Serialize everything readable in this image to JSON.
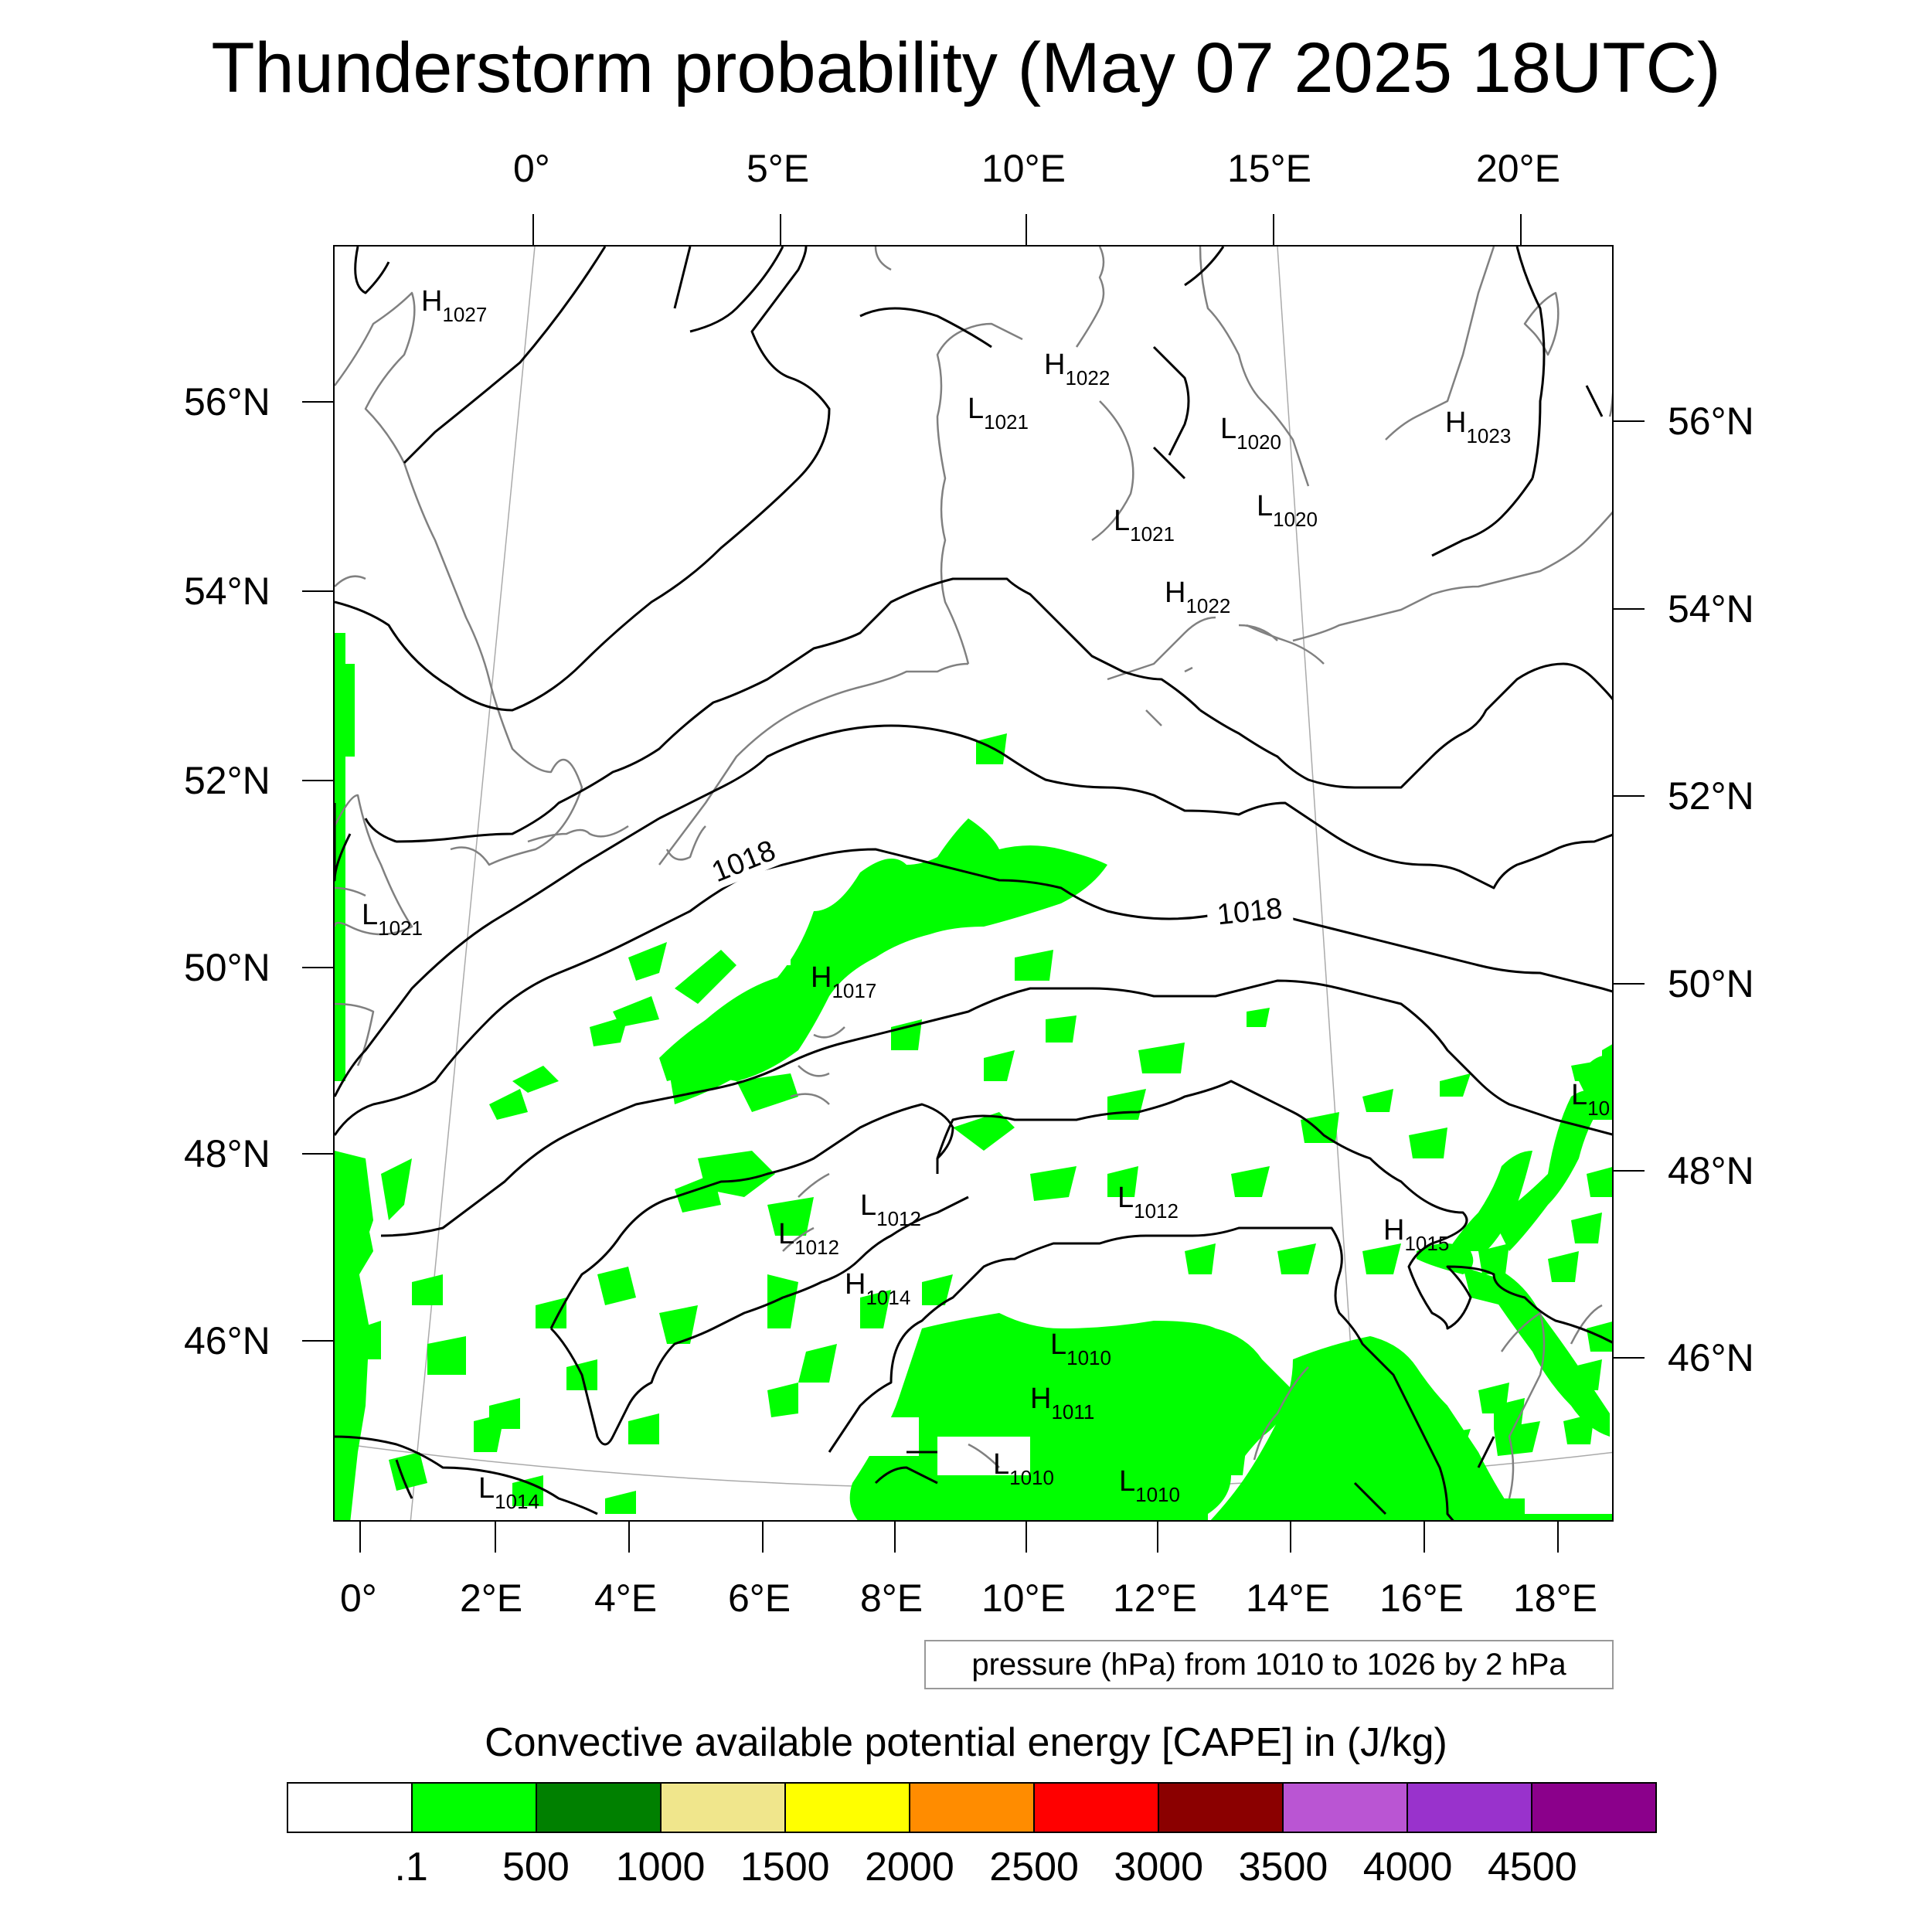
{
  "title": "Thunderstorm probability (May 07 2025 18UTC)",
  "top_axis_labels": [
    "0°",
    "5°E",
    "10°E",
    "15°E",
    "20°E"
  ],
  "bottom_axis_labels": [
    "0°",
    "2°E",
    "4°E",
    "6°E",
    "8°E",
    "10°E",
    "12°E",
    "14°E",
    "16°E",
    "18°E"
  ],
  "left_axis_labels": [
    "56°N",
    "54°N",
    "52°N",
    "50°N",
    "48°N",
    "46°N"
  ],
  "right_axis_labels": [
    "56°N",
    "54°N",
    "52°N",
    "50°N",
    "48°N",
    "46°N"
  ],
  "isobar_labels": [
    "1018",
    "1018"
  ],
  "pressure_centers": [
    {
      "letter": "H",
      "value": "1027"
    },
    {
      "letter": "H",
      "value": "1022"
    },
    {
      "letter": "L",
      "value": "1021"
    },
    {
      "letter": "L",
      "value": "1020"
    },
    {
      "letter": "H",
      "value": "1023"
    },
    {
      "letter": "L",
      "value": "1021"
    },
    {
      "letter": "L",
      "value": "1020"
    },
    {
      "letter": "H",
      "value": "1022"
    },
    {
      "letter": "L",
      "value": "1021"
    },
    {
      "letter": "H",
      "value": "1017"
    },
    {
      "letter": "L",
      "value": "10"
    },
    {
      "letter": "L",
      "value": "1012"
    },
    {
      "letter": "L",
      "value": "1012"
    },
    {
      "letter": "L",
      "value": "1012"
    },
    {
      "letter": "H",
      "value": "1015"
    },
    {
      "letter": "H",
      "value": "1014"
    },
    {
      "letter": "L",
      "value": "1010"
    },
    {
      "letter": "H",
      "value": "1011"
    },
    {
      "letter": "L",
      "value": "1010"
    },
    {
      "letter": "L",
      "value": "1010"
    },
    {
      "letter": "L",
      "value": "1014"
    }
  ],
  "contour_note": "pressure (hPa) from 1010 to 1026 by 2 hPa",
  "colorbar": {
    "title": "Convective available potential energy [CAPE] in (J/kg)",
    "colors": [
      "#ffffff",
      "#00ff00",
      "#008000",
      "#f0e68c",
      "#ffff00",
      "#ff8c00",
      "#ff0000",
      "#8b0000",
      "#ba55d3",
      "#9932cc",
      "#8b008b"
    ],
    "labels": [
      ".1",
      "500",
      "1000",
      "1500",
      "2000",
      "2500",
      "3000",
      "3500",
      "4000",
      "4500"
    ]
  }
}
